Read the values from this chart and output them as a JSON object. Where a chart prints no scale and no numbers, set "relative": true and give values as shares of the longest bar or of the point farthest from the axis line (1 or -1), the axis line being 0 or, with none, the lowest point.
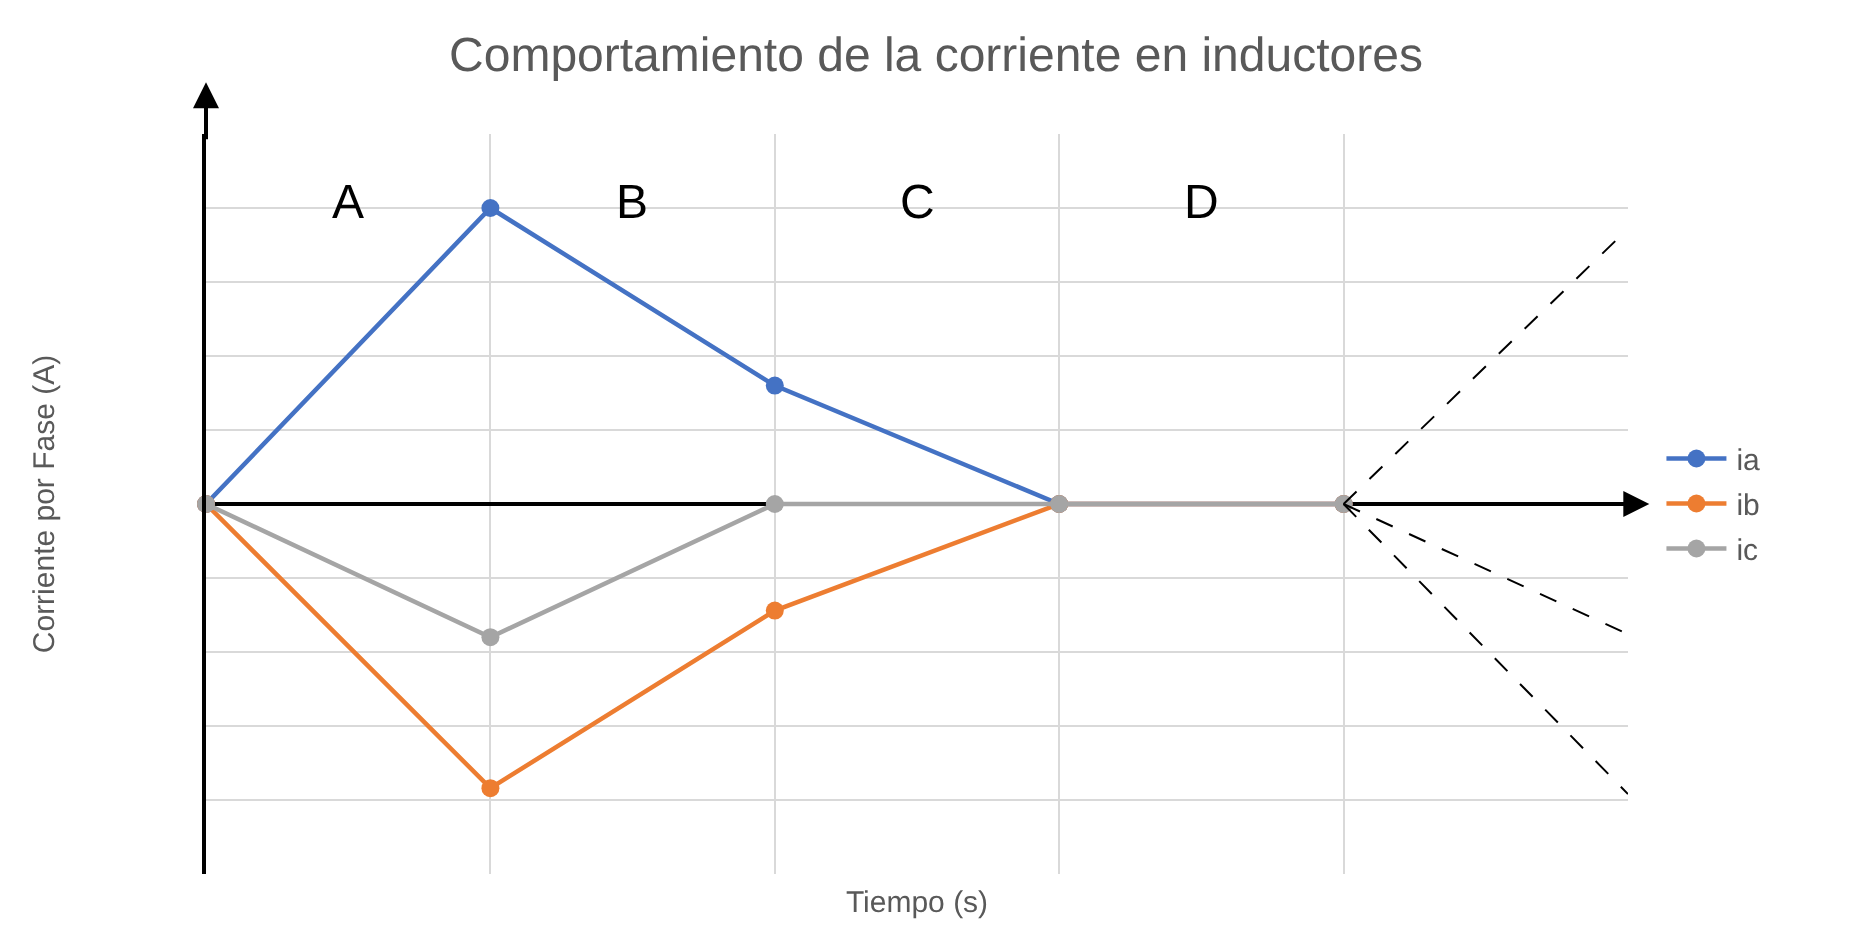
{
  "chart_data": {
    "type": "line",
    "title": "Comportamiento de la corriente en inductores",
    "xlabel": "Tiempo (s)",
    "ylabel": "Corriente por Fase (A)",
    "categories": [
      null,
      null,
      null,
      null,
      null,
      null
    ],
    "relative": true,
    "grid": true,
    "legend": "right",
    "marker": "circle",
    "line_style": "solid",
    "annotations": [
      "A",
      "B",
      "C",
      "D"
    ],
    "series": [
      {
        "name": "ia",
        "color": "#4472c4",
        "values": [
          0,
          1,
          0.4,
          0,
          0,
          null
        ]
      },
      {
        "name": "ib",
        "color": "#ed7d31",
        "values": [
          0,
          -0.96,
          -0.36,
          0,
          0,
          null
        ]
      },
      {
        "name": "ic",
        "color": "#a5a5a5",
        "values": [
          0,
          -0.45,
          0,
          0,
          0,
          null
        ]
      },
      {
        "color": "#000000",
        "line_style": "dashed",
        "marker": "none",
        "values": [
          null,
          null,
          null,
          null,
          0,
          0.93
        ]
      },
      {
        "color": "#000000",
        "line_style": "dashed",
        "marker": "none",
        "values": [
          null,
          null,
          null,
          null,
          0,
          -0.44
        ]
      },
      {
        "color": "#000000",
        "line_style": "dashed",
        "marker": "none",
        "values": [
          null,
          null,
          null,
          null,
          0,
          -0.98
        ]
      }
    ]
  }
}
